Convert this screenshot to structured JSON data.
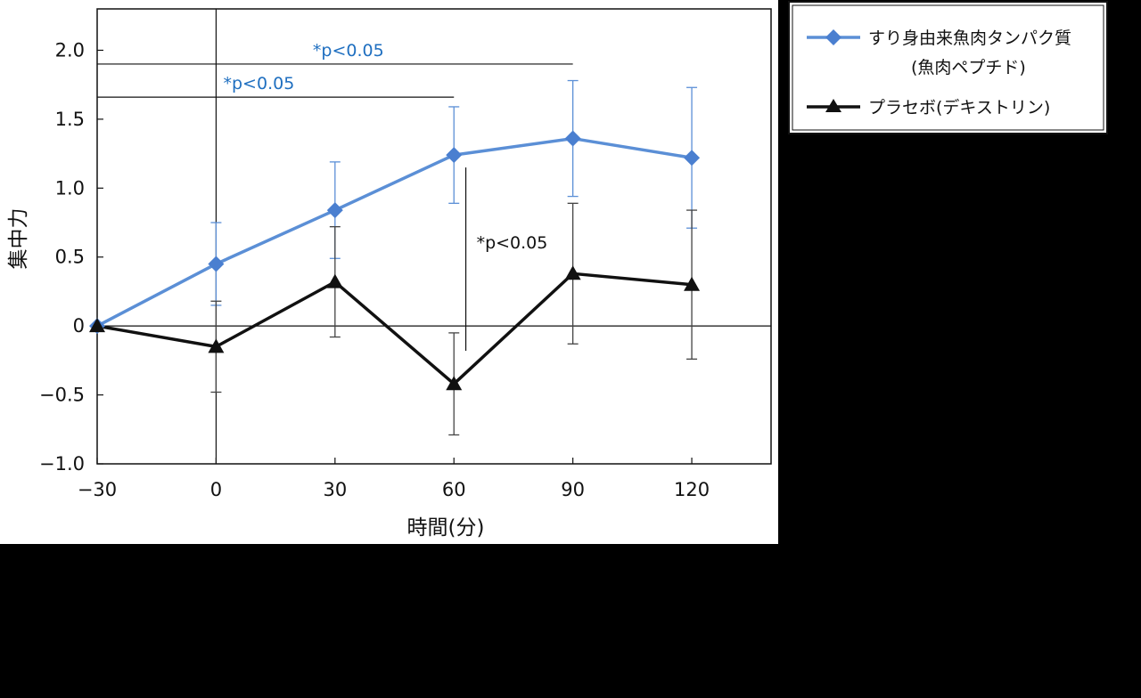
{
  "chart_data": {
    "type": "line",
    "xlabel": "時間(分)",
    "ylabel": "集中力",
    "x": [
      -30,
      0,
      30,
      60,
      90,
      120
    ],
    "x_tick_labels": [
      "−30",
      "0",
      "30",
      "60",
      "90",
      "120"
    ],
    "xlim": [
      -30,
      140
    ],
    "ylim": [
      -1.0,
      2.3
    ],
    "y_ticks": [
      -1.0,
      -0.5,
      0,
      0.5,
      1.0,
      1.5,
      2.0
    ],
    "y_tick_labels": [
      "−1.0",
      "−0.5",
      "0",
      "0.5",
      "1.0",
      "1.5",
      "2.0"
    ],
    "grid": false,
    "legend_position": "outside-right",
    "series": [
      {
        "name_line1": "すり身由来魚肉タンパク質",
        "name_line2": "(魚肉ペプチド)",
        "color": "#5b8fd6",
        "marker": "diamond",
        "values": [
          0,
          0.45,
          0.84,
          1.24,
          1.36,
          1.22
        ],
        "error": [
          0,
          0.3,
          0.35,
          0.35,
          0.42,
          0.51
        ]
      },
      {
        "name_line1": "プラセボ(デキストリン)",
        "color": "#111111",
        "marker": "triangle",
        "values": [
          0,
          -0.15,
          0.32,
          -0.42,
          0.38,
          0.3
        ],
        "error": [
          0,
          0.33,
          0.4,
          0.37,
          0.51,
          0.54
        ]
      }
    ],
    "annotations": [
      {
        "text": "*p<0.05",
        "color": "#1f6fc0",
        "bracket_x": [
          -30,
          90
        ],
        "bracket_y": 1.9
      },
      {
        "text": "*p<0.05",
        "color": "#1f6fc0",
        "bracket_x": [
          -30,
          60
        ],
        "bracket_y": 1.66
      },
      {
        "text": "*p<0.05",
        "color": "#111111",
        "vertical_at_x": 63,
        "vertical_y": [
          -0.18,
          1.15
        ]
      }
    ]
  }
}
